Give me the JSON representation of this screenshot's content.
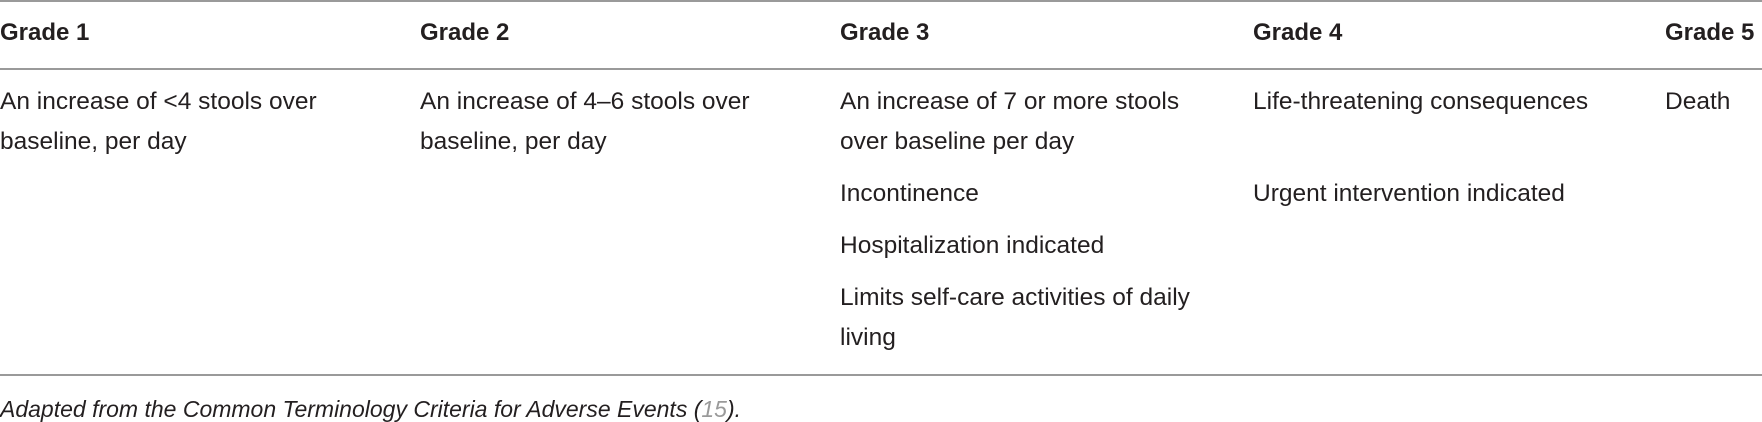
{
  "table": {
    "headers": [
      "Grade 1",
      "Grade 2",
      "Grade 3",
      "Grade 4",
      "Grade 5"
    ],
    "columns": [
      [
        [
          "An increase of <4 stools over",
          "baseline, per day"
        ]
      ],
      [
        [
          "An increase of 4–6 stools over",
          "baseline, per day"
        ]
      ],
      [
        [
          "An increase of 7 or more stools",
          "over baseline per day"
        ],
        [
          "Incontinence"
        ],
        [
          "Hospitalization indicated"
        ],
        [
          "Limits self-care activities of daily",
          "living"
        ]
      ],
      [
        [
          "Life-threatening consequences"
        ],
        [
          "Urgent intervention indicated"
        ]
      ],
      [
        [
          "Death"
        ]
      ]
    ]
  },
  "footnote": {
    "text_before": "Adapted from the Common Terminology Criteria for Adverse Events (",
    "ref": "15",
    "text_after": ")."
  }
}
